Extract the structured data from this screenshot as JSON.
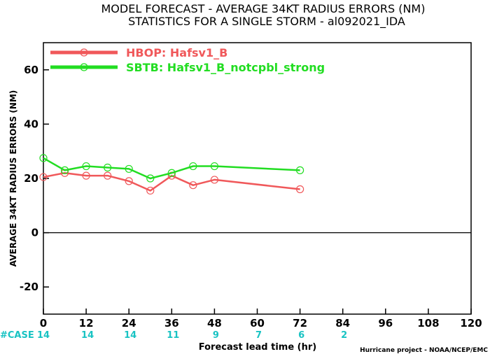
{
  "colors": {
    "hbop": "#f0585a",
    "sbtb": "#22dd22",
    "cases": "#19c3c3",
    "zero_line": "#000000"
  },
  "chart_data": {
    "type": "line",
    "title_line1": "MODEL FORECAST - AVERAGE 34KT RADIUS ERRORS (NM)",
    "title_line2": "STATISTICS FOR A SINGLE STORM - al092021_IDA",
    "xlabel": "Forecast lead time (hr)",
    "ylabel": "AVERAGE 34KT RADIUS ERRORS (NM)",
    "credit": "Hurricane project - NOAA/NCEP/EMC",
    "xlim": [
      0,
      120
    ],
    "ylim": [
      -30,
      70
    ],
    "xticks": [
      "0",
      "12",
      "24",
      "36",
      "48",
      "60",
      "72",
      "84",
      "96",
      "108",
      "120"
    ],
    "yticks": [
      "60",
      "40",
      "20",
      "0",
      "-20"
    ],
    "series": [
      {
        "name": "HBOP: Hafsv1_B",
        "x": [
          0,
          6,
          12,
          18,
          24,
          30,
          36,
          42,
          48,
          72
        ],
        "values": [
          20.5,
          22,
          21,
          21,
          19,
          15.5,
          21,
          17.5,
          19.5,
          16
        ]
      },
      {
        "name": "SBTB: Hafsv1_B_notcpbl_strong",
        "x": [
          0,
          6,
          12,
          18,
          24,
          30,
          36,
          42,
          48,
          72
        ],
        "values": [
          27.5,
          23,
          24.5,
          24,
          23.5,
          20,
          22,
          24.5,
          24.5,
          23
        ]
      }
    ],
    "cases": {
      "label": "#CASE",
      "entries": [
        {
          "x": 0,
          "count": "14"
        },
        {
          "x": 12,
          "count": "14"
        },
        {
          "x": 24,
          "count": "14"
        },
        {
          "x": 36,
          "count": "11"
        },
        {
          "x": 48,
          "count": "9"
        },
        {
          "x": 60,
          "count": "7"
        },
        {
          "x": 72,
          "count": "6"
        },
        {
          "x": 84,
          "count": "2"
        }
      ]
    }
  }
}
